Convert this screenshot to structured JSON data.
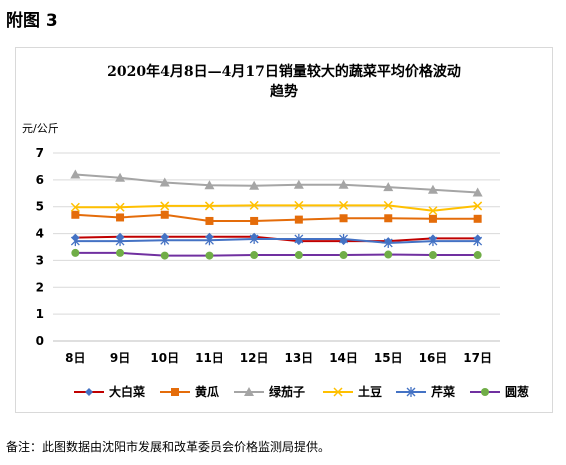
{
  "figure_label": "附图 3",
  "footnote": "备注：此图数据由沈阳市发展和改革委员会价格监测局提供。",
  "chart_data": {
    "type": "line",
    "title_line1": "2020年4月8日—4月17日销量较大的蔬菜平均价格波动",
    "title_line2": "趋势",
    "y_unit": "元/公斤",
    "categories": [
      "8日",
      "9日",
      "10日",
      "11日",
      "12日",
      "13日",
      "14日",
      "15日",
      "16日",
      "17日"
    ],
    "ylim": [
      0,
      7
    ],
    "yticks": [
      "0",
      "1",
      "2",
      "3",
      "4",
      "5",
      "6",
      "7"
    ],
    "grid": true,
    "legend_position": "bottom",
    "series": [
      {
        "name": "大白菜",
        "color": "#c00000",
        "markerColor": "#4472c4",
        "marker": "diamond",
        "values": [
          3.85,
          3.88,
          3.88,
          3.88,
          3.88,
          3.72,
          3.72,
          3.72,
          3.82,
          3.82
        ]
      },
      {
        "name": "黄瓜",
        "color": "#e46c0a",
        "markerColor": "#e46c0a",
        "marker": "square",
        "values": [
          4.7,
          4.6,
          4.7,
          4.47,
          4.47,
          4.52,
          4.57,
          4.57,
          4.55,
          4.55
        ]
      },
      {
        "name": "绿茄子",
        "color": "#a5a5a5",
        "markerColor": "#a5a5a5",
        "marker": "triangle",
        "values": [
          6.2,
          6.08,
          5.9,
          5.8,
          5.78,
          5.82,
          5.82,
          5.73,
          5.63,
          5.53
        ]
      },
      {
        "name": "土豆",
        "color": "#ffc000",
        "markerColor": "#ffc000",
        "marker": "x",
        "values": [
          4.98,
          4.98,
          5.03,
          5.03,
          5.05,
          5.05,
          5.05,
          5.05,
          4.85,
          5.03
        ]
      },
      {
        "name": "芹菜",
        "color": "#4472c4",
        "markerColor": "#4472c4",
        "marker": "asterisk",
        "values": [
          3.72,
          3.72,
          3.75,
          3.75,
          3.8,
          3.8,
          3.8,
          3.65,
          3.72,
          3.72
        ]
      },
      {
        "name": "圆葱",
        "color": "#7030a0",
        "markerColor": "#70ad47",
        "marker": "circle",
        "values": [
          3.28,
          3.28,
          3.18,
          3.18,
          3.2,
          3.2,
          3.2,
          3.22,
          3.2,
          3.2
        ]
      }
    ]
  }
}
